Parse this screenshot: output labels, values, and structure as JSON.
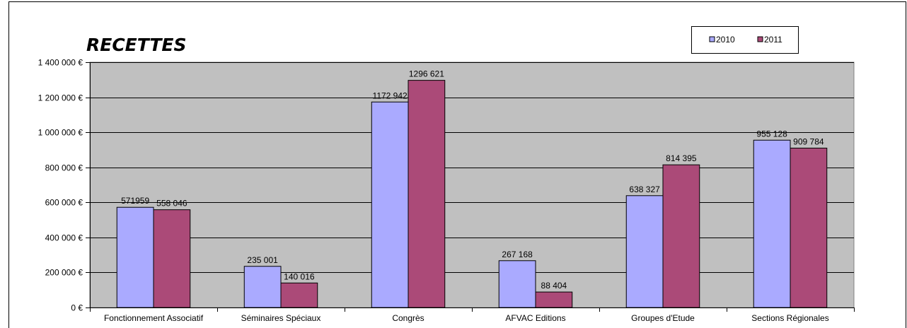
{
  "chart_data": {
    "type": "bar",
    "title": "RECETTES",
    "categories": [
      "Fonctionnement Associatif",
      "Séminaires Spéciaux",
      "Congrès",
      "AFVAC Editions",
      "Groupes d'Etude",
      "Sections Régionales"
    ],
    "series": [
      {
        "name": "2010",
        "color": "#aaaaff",
        "values": [
          571959,
          235001,
          1172942,
          267168,
          638327,
          955128
        ],
        "labels": [
          "571959",
          "235 001",
          "1172 942",
          "267 168",
          "638 327",
          "955 128"
        ]
      },
      {
        "name": "2011",
        "color": "#ab4a78",
        "values": [
          558046,
          140016,
          1296621,
          88404,
          814395,
          909784
        ],
        "labels": [
          "558 046",
          "140 016",
          "1296 621",
          "88 404",
          "814 395",
          "909 784"
        ]
      }
    ],
    "ylim": [
      0,
      1400000
    ],
    "yticks": [
      0,
      200000,
      400000,
      600000,
      800000,
      1000000,
      1200000,
      1400000
    ],
    "ytick_labels": [
      "0 €",
      "200 000 €",
      "400 000 €",
      "600 000 €",
      "800 000 €",
      "1 000 000 €",
      "1 200 000 €",
      "1 400 000 €"
    ],
    "xlabel": "",
    "ylabel": "",
    "grid": true,
    "legend": "top-right",
    "plot_background": "#c0c0c0"
  }
}
